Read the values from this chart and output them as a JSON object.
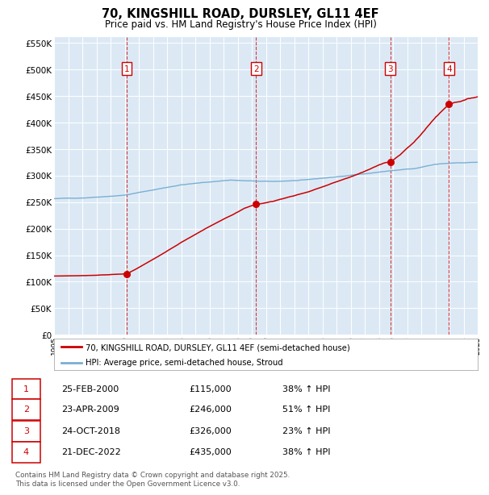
{
  "title": "70, KINGSHILL ROAD, DURSLEY, GL11 4EF",
  "subtitle": "Price paid vs. HM Land Registry's House Price Index (HPI)",
  "background_color": "#dce9f5",
  "grid_color": "#ffffff",
  "red_line_color": "#cc0000",
  "blue_line_color": "#7aafd4",
  "x_start_year": 1995,
  "x_end_year": 2025,
  "y_min": 0,
  "y_max": 560000,
  "y_ticks": [
    0,
    50000,
    100000,
    150000,
    200000,
    250000,
    300000,
    350000,
    400000,
    450000,
    500000,
    550000
  ],
  "sales": [
    {
      "date_str": "25-FEB-2000",
      "date_num": 2000.15,
      "price": 115000,
      "label": "1",
      "pct": "38%",
      "dir": "↑"
    },
    {
      "date_str": "23-APR-2009",
      "date_num": 2009.31,
      "price": 246000,
      "label": "2",
      "pct": "51%",
      "dir": "↑"
    },
    {
      "date_str": "24-OCT-2018",
      "date_num": 2018.81,
      "price": 326000,
      "label": "3",
      "pct": "23%",
      "dir": "↑"
    },
    {
      "date_str": "21-DEC-2022",
      "date_num": 2022.97,
      "price": 435000,
      "label": "4",
      "pct": "38%",
      "dir": "↑"
    }
  ],
  "legend_line1": "70, KINGSHILL ROAD, DURSLEY, GL11 4EF (semi-detached house)",
  "legend_line2": "HPI: Average price, semi-detached house, Stroud",
  "footer": "Contains HM Land Registry data © Crown copyright and database right 2025.\nThis data is licensed under the Open Government Licence v3.0."
}
